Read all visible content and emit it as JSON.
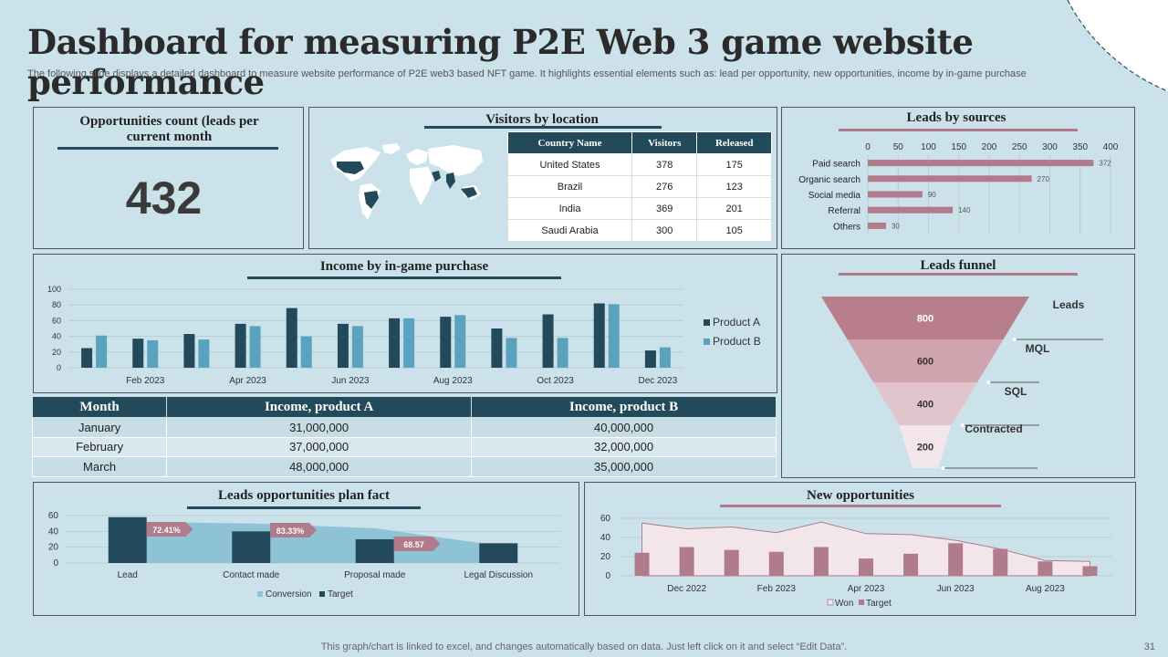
{
  "title": "Dashboard for measuring P2E Web 3 game website performance",
  "subtitle": "The following slide displays a detailed dashboard to measure website performance of P2E web3 based NFT game. It highlights essential elements such as: lead per opportunity, new opportunities, income by in-game purchase",
  "opportunities": {
    "title_line1": "Opportunities count (leads per",
    "title_line2": "current month",
    "value": "432"
  },
  "visitors": {
    "title": "Visitors by location",
    "headers": [
      "Country Name",
      "Visitors",
      "Released"
    ],
    "rows": [
      [
        "United States",
        "378",
        "175"
      ],
      [
        "Brazil",
        "276",
        "123"
      ],
      [
        "India",
        "369",
        "201"
      ],
      [
        "Saudi Arabia",
        "300",
        "105"
      ]
    ]
  },
  "income_table": {
    "headers": [
      "Month",
      "Income, product A",
      "Income, product B"
    ],
    "rows": [
      [
        "January",
        "31,000,000",
        "40,000,000"
      ],
      [
        "February",
        "37,000,000",
        "32,000,000"
      ],
      [
        "March",
        "48,000,000",
        "35,000,000"
      ]
    ]
  },
  "footer": "This graph/chart is linked to excel,  and changes automatically based on data. Just left click on it and select “Edit Data”.",
  "page_number": "31",
  "colors": {
    "dark": "#234a5a",
    "blue": "#5aa2bd",
    "pink": "#b07b8a",
    "light_blue_area": "#8ec3d6"
  },
  "chart_data": [
    {
      "id": "leads_by_sources",
      "type": "bar",
      "orientation": "horizontal",
      "title": "Leads by sources",
      "categories": [
        "Paid search",
        "Organic search",
        "Social media",
        "Referral",
        "Others"
      ],
      "values": [
        372,
        270,
        90,
        140,
        30
      ],
      "xlim": [
        0,
        400
      ],
      "ticks": [
        0,
        50,
        100,
        150,
        200,
        250,
        300,
        350,
        400
      ]
    },
    {
      "id": "income_by_purchase",
      "type": "bar",
      "title": "Income by in-game purchase",
      "categories": [
        "Jan 2023",
        "Feb 2023",
        "Mar 2023",
        "Apr 2023",
        "May 2023",
        "Jun 2023",
        "Jul 2023",
        "Aug 2023",
        "Sep 2023",
        "Oct 2023",
        "Nov 2023",
        "Dec 2023"
      ],
      "tick_labels": [
        "Feb 2023",
        "Apr 2023",
        "Jun 2023",
        "Aug 2023",
        "Oct 2023",
        "Dec 2023"
      ],
      "series": [
        {
          "name": "Product A",
          "values": [
            25,
            37,
            43,
            56,
            76,
            56,
            63,
            65,
            50,
            68,
            82,
            22
          ]
        },
        {
          "name": "Product B",
          "values": [
            41,
            35,
            36,
            53,
            40,
            53,
            63,
            67,
            38,
            38,
            81,
            26
          ]
        }
      ],
      "ylim": [
        0,
        100
      ],
      "yticks": [
        0,
        20,
        40,
        60,
        80,
        100
      ],
      "legend": "right"
    },
    {
      "id": "leads_funnel",
      "type": "funnel",
      "title": "Leads funnel",
      "categories": [
        "Leads",
        "MQL",
        "SQL",
        "Contracted"
      ],
      "values": [
        800,
        600,
        400,
        200
      ]
    },
    {
      "id": "leads_plan_fact",
      "type": "bar",
      "title": "Leads opportunities plan fact",
      "categories": [
        "Lead",
        "Contact made",
        "Proposal made",
        "Legal Discussion"
      ],
      "series": [
        {
          "name": "Conversion",
          "type": "area",
          "values": [
            52,
            50,
            44,
            22
          ]
        },
        {
          "name": "Target",
          "values": [
            58,
            40,
            30,
            25
          ]
        }
      ],
      "labels": [
        "72.41%",
        "83.33%",
        "68.57"
      ],
      "ylim": [
        0,
        60
      ],
      "yticks": [
        0,
        20,
        40,
        60
      ],
      "legend": "bottom"
    },
    {
      "id": "new_opportunities",
      "type": "bar",
      "title": "New opportunities",
      "categories": [
        "Nov 2022",
        "Dec 2022",
        "Jan 2023",
        "Feb 2023",
        "Mar 2023",
        "Apr 2023",
        "May 2023",
        "Jun 2023",
        "Jul 2023",
        "Aug 2023",
        "Sep 2023"
      ],
      "tick_labels": [
        "Dec 2022",
        "Feb 2023",
        "Apr 2023",
        "Jun 2023",
        "Aug 2023"
      ],
      "series": [
        {
          "name": "Won",
          "type": "area",
          "values": [
            55,
            49,
            51,
            45,
            56,
            44,
            43,
            37,
            28,
            16,
            15
          ]
        },
        {
          "name": "Target",
          "values": [
            24,
            30,
            27,
            25,
            30,
            18,
            23,
            34,
            28,
            15,
            10
          ]
        }
      ],
      "ylim": [
        0,
        60
      ],
      "yticks": [
        0,
        20,
        40,
        60
      ],
      "legend": "bottom"
    }
  ]
}
